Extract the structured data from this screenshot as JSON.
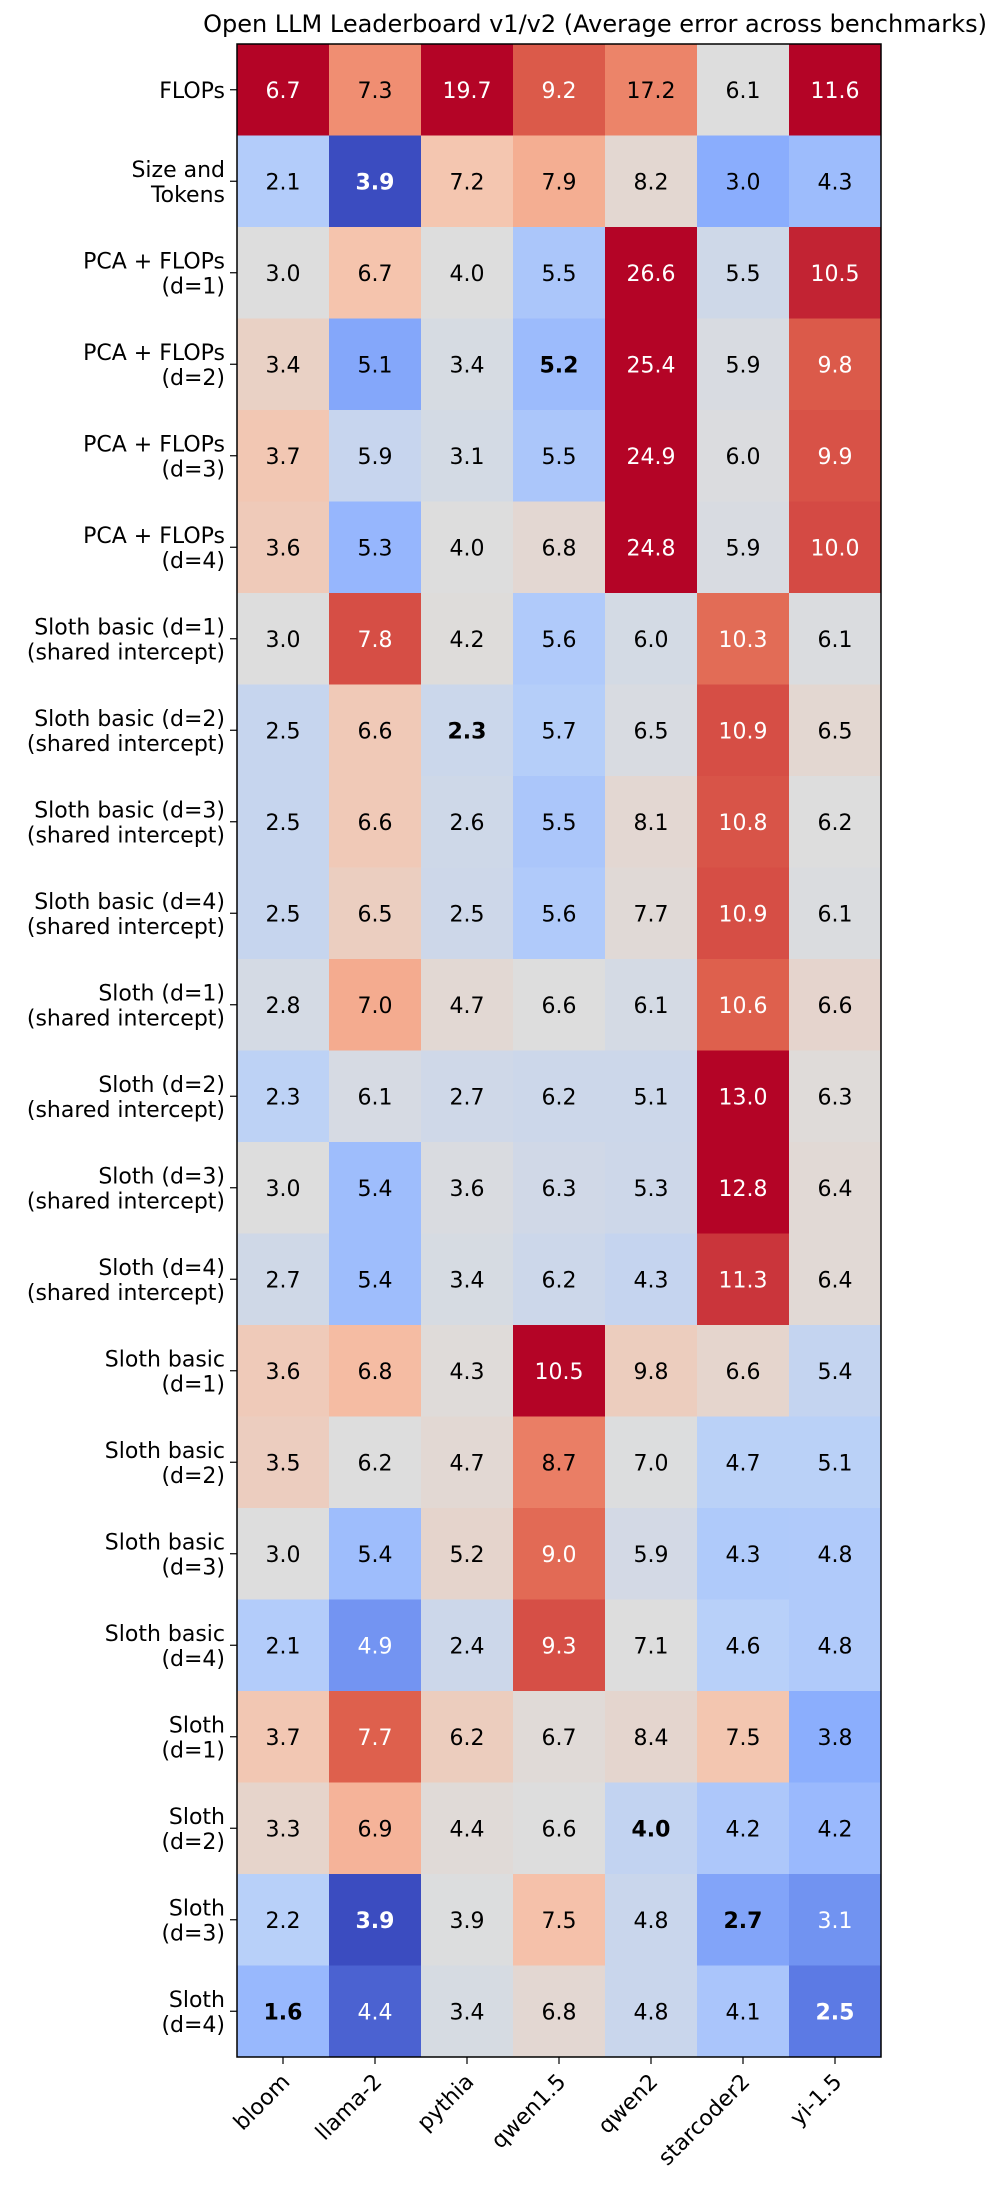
{
  "chart_data": {
    "type": "heatmap",
    "title": "Open LLM Leaderboard v1/v2 (Average error across benchmarks)",
    "columns": [
      "bloom",
      "llama-2",
      "pythia",
      "qwen1.5",
      "qwen2",
      "starcoder2",
      "yi-1.5"
    ],
    "rows": [
      {
        "lines": [
          "FLOPs"
        ],
        "values": [
          6.7,
          7.3,
          19.7,
          9.2,
          17.2,
          6.1,
          11.6
        ]
      },
      {
        "lines": [
          "Size and",
          "Tokens"
        ],
        "values": [
          2.1,
          3.9,
          7.2,
          7.9,
          8.2,
          3.0,
          4.3
        ]
      },
      {
        "lines": [
          "PCA + FLOPs",
          "(d=1)"
        ],
        "values": [
          3.0,
          6.7,
          4.0,
          5.5,
          26.6,
          5.5,
          10.5
        ]
      },
      {
        "lines": [
          "PCA + FLOPs",
          "(d=2)"
        ],
        "values": [
          3.4,
          5.1,
          3.4,
          5.2,
          25.4,
          5.9,
          9.8
        ]
      },
      {
        "lines": [
          "PCA + FLOPs",
          "(d=3)"
        ],
        "values": [
          3.7,
          5.9,
          3.1,
          5.5,
          24.9,
          6.0,
          9.9
        ]
      },
      {
        "lines": [
          "PCA + FLOPs",
          "(d=4)"
        ],
        "values": [
          3.6,
          5.3,
          4.0,
          6.8,
          24.8,
          5.9,
          10.0
        ]
      },
      {
        "lines": [
          "Sloth basic (d=1)",
          "(shared intercept)"
        ],
        "values": [
          3.0,
          7.8,
          4.2,
          5.6,
          6.0,
          10.3,
          6.1
        ]
      },
      {
        "lines": [
          "Sloth basic (d=2)",
          "(shared intercept)"
        ],
        "values": [
          2.5,
          6.6,
          2.3,
          5.7,
          6.5,
          10.9,
          6.5
        ]
      },
      {
        "lines": [
          "Sloth basic (d=3)",
          "(shared intercept)"
        ],
        "values": [
          2.5,
          6.6,
          2.6,
          5.5,
          8.1,
          10.8,
          6.2
        ]
      },
      {
        "lines": [
          "Sloth basic (d=4)",
          "(shared intercept)"
        ],
        "values": [
          2.5,
          6.5,
          2.5,
          5.6,
          7.7,
          10.9,
          6.1
        ]
      },
      {
        "lines": [
          "Sloth (d=1)",
          "(shared intercept)"
        ],
        "values": [
          2.8,
          7.0,
          4.7,
          6.6,
          6.1,
          10.6,
          6.6
        ]
      },
      {
        "lines": [
          "Sloth (d=2)",
          "(shared intercept)"
        ],
        "values": [
          2.3,
          6.1,
          2.7,
          6.2,
          5.1,
          13.0,
          6.3
        ]
      },
      {
        "lines": [
          "Sloth (d=3)",
          "(shared intercept)"
        ],
        "values": [
          3.0,
          5.4,
          3.6,
          6.3,
          5.3,
          12.8,
          6.4
        ]
      },
      {
        "lines": [
          "Sloth (d=4)",
          "(shared intercept)"
        ],
        "values": [
          2.7,
          5.4,
          3.4,
          6.2,
          4.3,
          11.3,
          6.4
        ]
      },
      {
        "lines": [
          "Sloth basic",
          "(d=1)"
        ],
        "values": [
          3.6,
          6.8,
          4.3,
          10.5,
          9.8,
          6.6,
          5.4
        ]
      },
      {
        "lines": [
          "Sloth basic",
          "(d=2)"
        ],
        "values": [
          3.5,
          6.2,
          4.7,
          8.7,
          7.0,
          4.7,
          5.1
        ]
      },
      {
        "lines": [
          "Sloth basic",
          "(d=3)"
        ],
        "values": [
          3.0,
          5.4,
          5.2,
          9.0,
          5.9,
          4.3,
          4.8
        ]
      },
      {
        "lines": [
          "Sloth basic",
          "(d=4)"
        ],
        "values": [
          2.1,
          4.9,
          2.4,
          9.3,
          7.1,
          4.6,
          4.8
        ]
      },
      {
        "lines": [
          "Sloth",
          "(d=1)"
        ],
        "values": [
          3.7,
          7.7,
          6.2,
          6.7,
          8.4,
          7.5,
          3.8
        ]
      },
      {
        "lines": [
          "Sloth",
          "(d=2)"
        ],
        "values": [
          3.3,
          6.9,
          4.4,
          6.6,
          4.0,
          4.2,
          4.2
        ]
      },
      {
        "lines": [
          "Sloth",
          "(d=3)"
        ],
        "values": [
          2.2,
          3.9,
          3.9,
          7.5,
          4.8,
          2.7,
          3.1
        ]
      },
      {
        "lines": [
          "Sloth",
          "(d=4)"
        ],
        "values": [
          1.6,
          4.4,
          3.4,
          6.8,
          4.8,
          4.1,
          2.5
        ]
      }
    ],
    "bold_cells": [
      [
        1,
        1
      ],
      [
        3,
        3
      ],
      [
        7,
        2
      ],
      [
        19,
        4
      ],
      [
        20,
        1
      ],
      [
        20,
        5
      ],
      [
        21,
        0
      ],
      [
        21,
        6
      ]
    ],
    "colormap": "coolwarm",
    "ylabel": "",
    "xlabel": ""
  }
}
